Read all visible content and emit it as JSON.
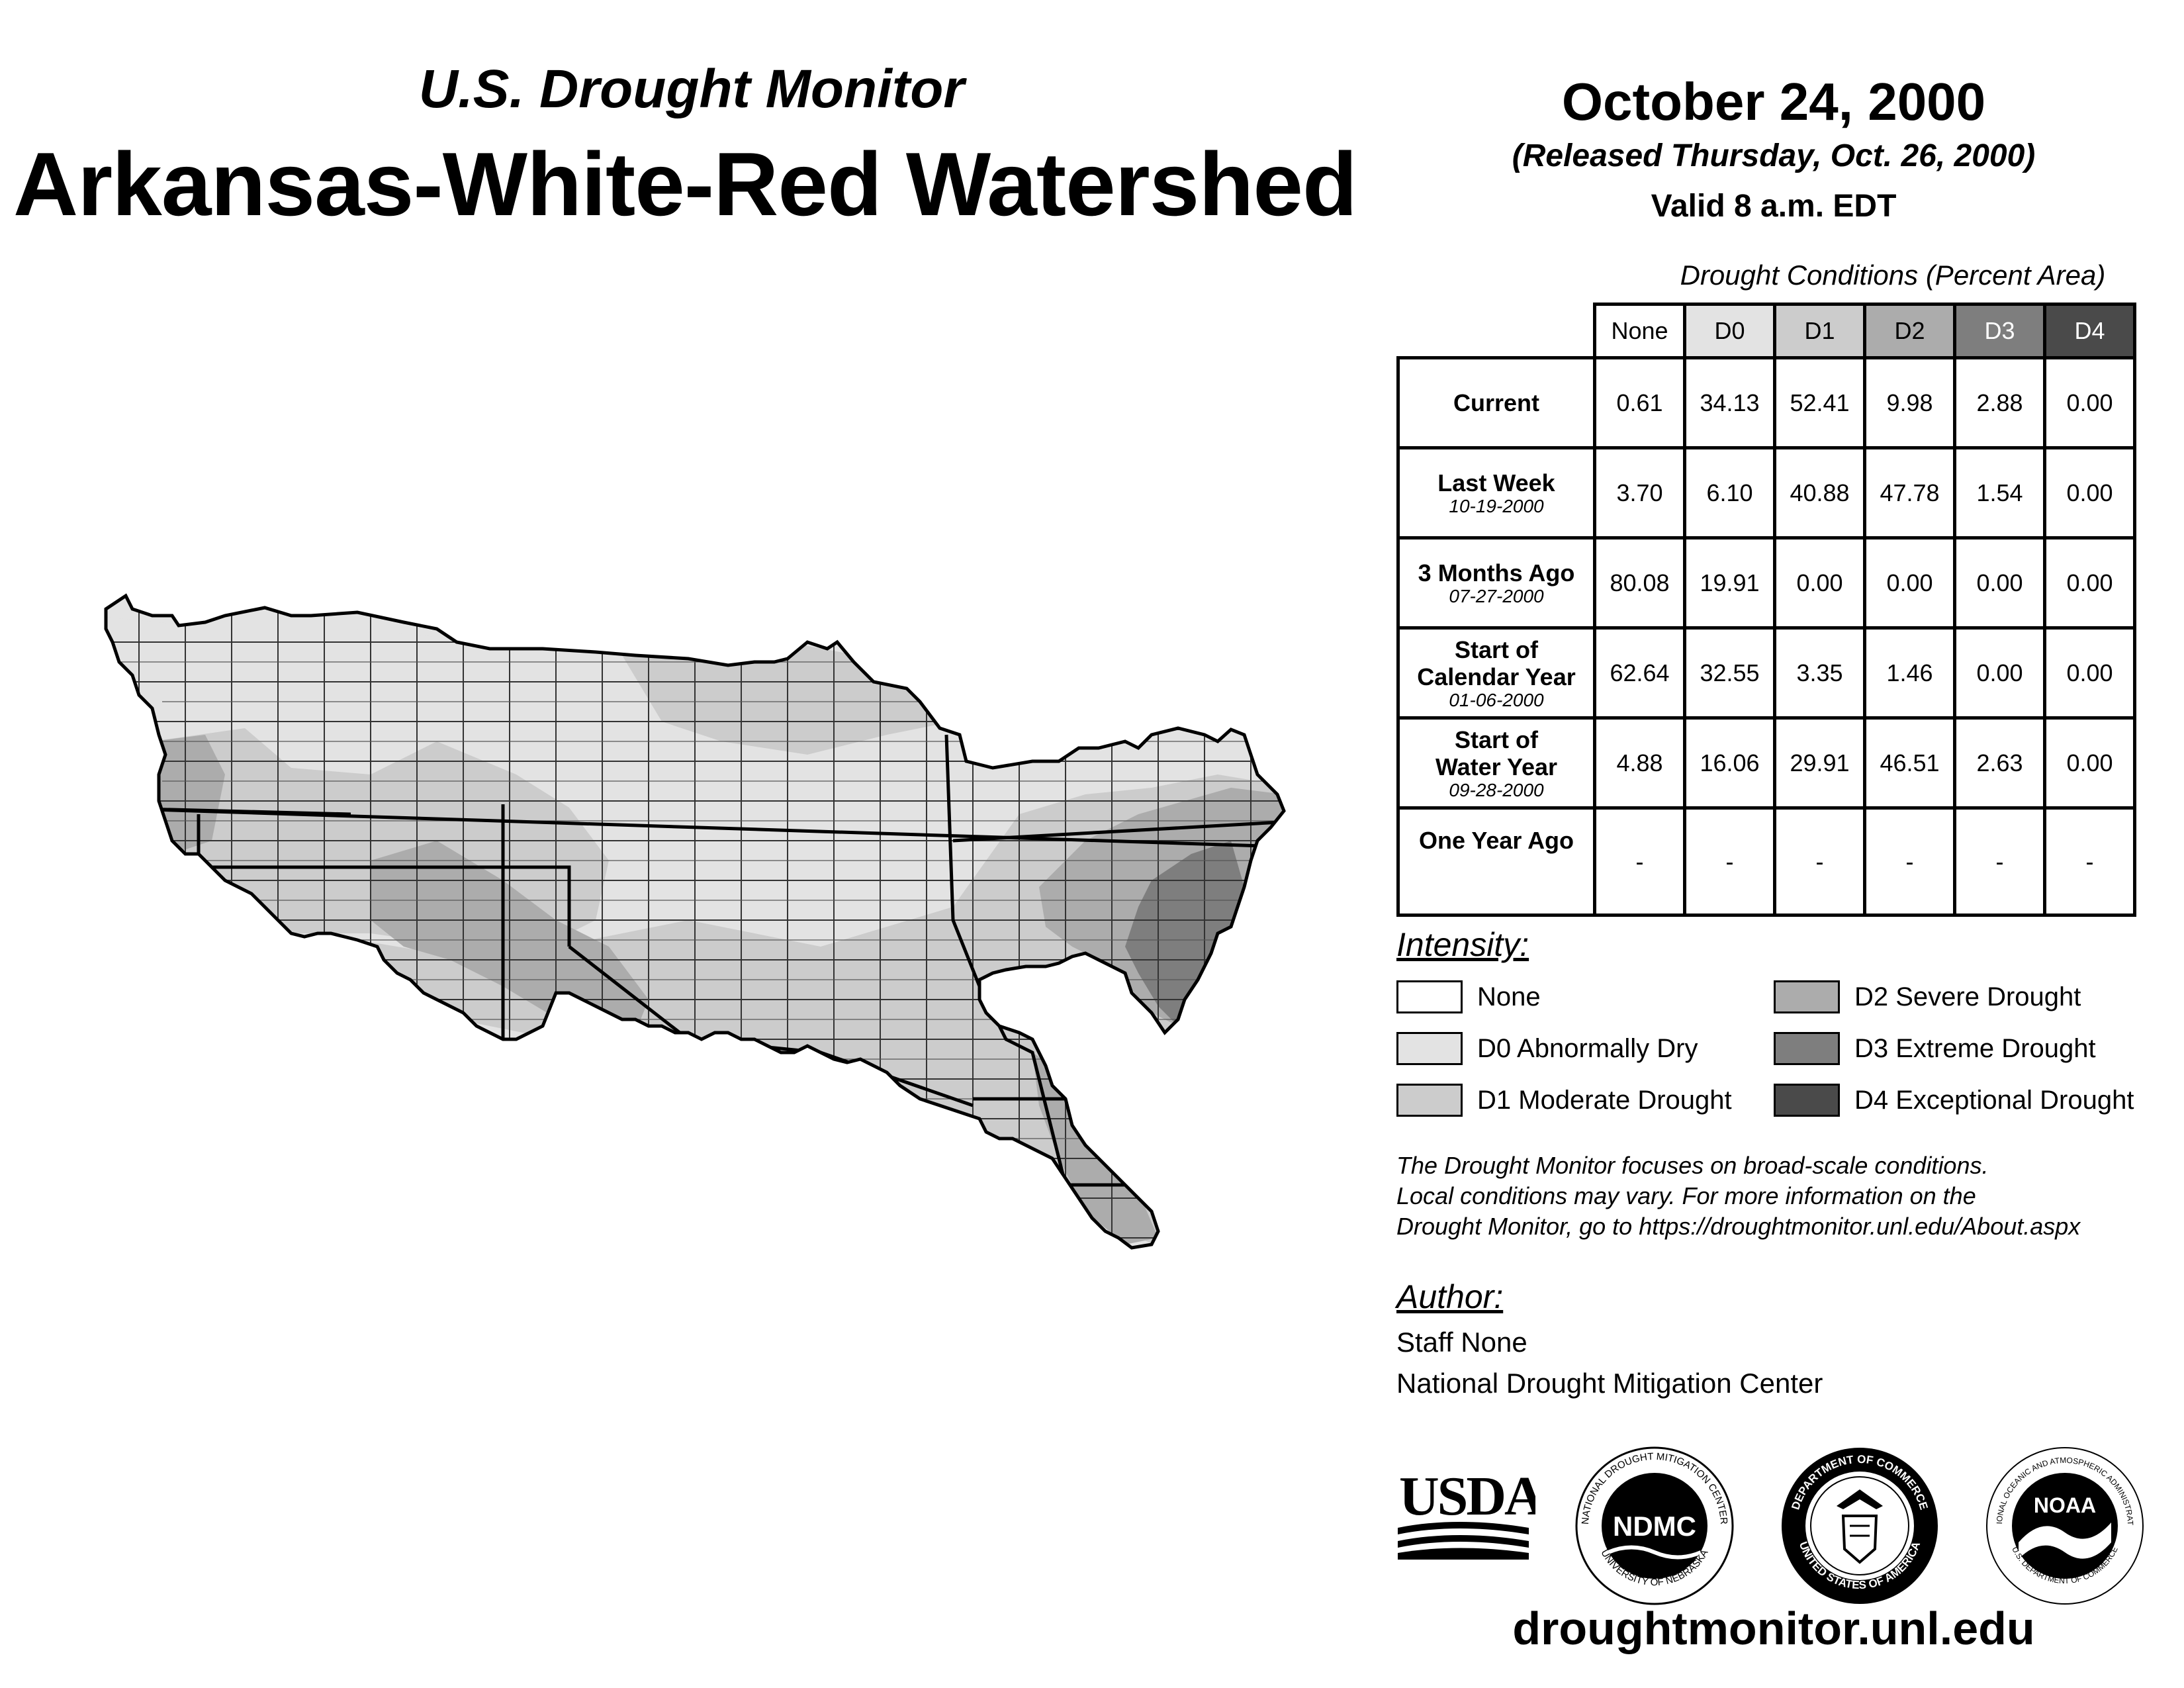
{
  "header": {
    "supertitle": "U.S. Drought Monitor",
    "title": "Arkansas-White-Red Watershed",
    "date": "October 24, 2000",
    "released": "(Released Thursday, Oct. 26, 2000)",
    "valid": "Valid 8 a.m. EDT"
  },
  "table": {
    "title": "Drought Conditions (Percent Area)",
    "columns": [
      "None",
      "D0",
      "D1",
      "D2",
      "D3",
      "D4"
    ],
    "rows": [
      {
        "label": "Current",
        "label2": "",
        "date": "",
        "values": [
          "0.61",
          "34.13",
          "52.41",
          "9.98",
          "2.88",
          "0.00"
        ]
      },
      {
        "label": "Last Week",
        "label2": "",
        "date": "10-19-2000",
        "values": [
          "3.70",
          "6.10",
          "40.88",
          "47.78",
          "1.54",
          "0.00"
        ]
      },
      {
        "label": "3 Months Ago",
        "label2": "",
        "date": "07-27-2000",
        "values": [
          "80.08",
          "19.91",
          "0.00",
          "0.00",
          "0.00",
          "0.00"
        ]
      },
      {
        "label": "Start of",
        "label2": "Calendar Year",
        "date": "01-06-2000",
        "values": [
          "62.64",
          "32.55",
          "3.35",
          "1.46",
          "0.00",
          "0.00"
        ]
      },
      {
        "label": "Start of",
        "label2": "Water Year",
        "date": "09-28-2000",
        "values": [
          "4.88",
          "16.06",
          "29.91",
          "46.51",
          "2.63",
          "0.00"
        ]
      },
      {
        "label": "One Year Ago",
        "label2": "",
        "date": "",
        "values": [
          "-",
          "-",
          "-",
          "-",
          "-",
          "-"
        ]
      }
    ]
  },
  "legend": {
    "title": "Intensity:",
    "items": [
      {
        "label": "None",
        "color": "#ffffff"
      },
      {
        "label": "D0 Abnormally Dry",
        "color": "#e3e3e3"
      },
      {
        "label": "D1 Moderate Drought",
        "color": "#cccccc"
      },
      {
        "label": "D2 Severe Drought",
        "color": "#acacac"
      },
      {
        "label": "D3 Extreme Drought",
        "color": "#7e7e7e"
      },
      {
        "label": "D4 Exceptional Drought",
        "color": "#4a4a4a"
      }
    ]
  },
  "note": {
    "line1": "The Drought Monitor focuses on broad-scale conditions.",
    "line2": "Local conditions may vary. For more information on the",
    "line3": "Drought Monitor, go to https://droughtmonitor.unl.edu/About.aspx"
  },
  "author": {
    "title": "Author:",
    "name": "Staff None",
    "org": "National Drought Mitigation Center"
  },
  "logos": {
    "usda": "USDA",
    "ndmc": "NDMC",
    "ndmc_top": "NATIONAL DROUGHT MITIGATION CENTER",
    "ndmc_bottom": "UNIVERSITY OF NEBRASKA",
    "doc_top": "DEPARTMENT OF COMMERCE",
    "doc_bottom": "UNITED STATES OF AMERICA",
    "noaa": "NOAA",
    "noaa_top": "NATIONAL OCEANIC AND ATMOSPHERIC ADMINISTRATION",
    "noaa_bottom": "U.S. DEPARTMENT OF COMMERCE"
  },
  "footer": {
    "url": "droughtmonitor.unl.edu"
  }
}
